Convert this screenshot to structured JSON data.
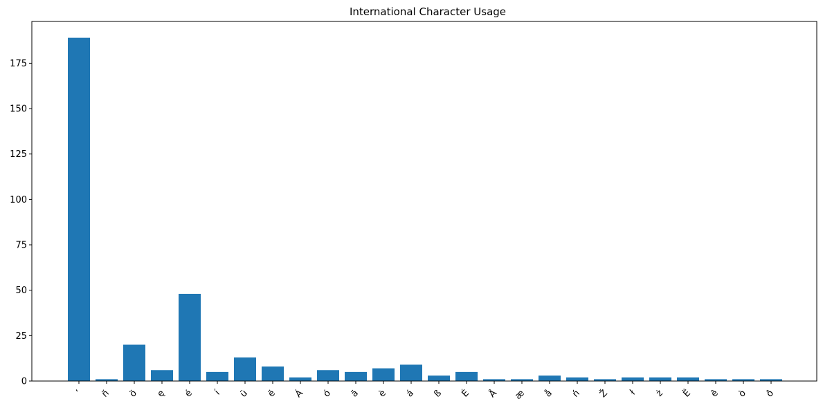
{
  "chart_data": {
    "type": "bar",
    "title": "International Character Usage",
    "xlabel": "",
    "ylabel": "",
    "categories": [
      "’",
      "ñ",
      "ö",
      "ę",
      "é",
      "í",
      "ü",
      "ë",
      "Á",
      "ó",
      "ä",
      "è",
      "á",
      "ß",
      "É",
      "Å",
      "æ",
      "å",
      "ń",
      "Ž",
      "ł",
      "ż",
      "Ë",
      "ê",
      "ò",
      "ô"
    ],
    "values": [
      189,
      1,
      20,
      6,
      48,
      5,
      13,
      8,
      2,
      6,
      5,
      7,
      9,
      3,
      5,
      1,
      1,
      3,
      2,
      1,
      2,
      2,
      2,
      1,
      1,
      1
    ],
    "ylim": [
      0,
      198
    ],
    "yticks": [
      0,
      25,
      50,
      75,
      100,
      125,
      150,
      175
    ],
    "bar_color": "#1f77b4",
    "grid": false,
    "xtick_rotation": 45
  }
}
